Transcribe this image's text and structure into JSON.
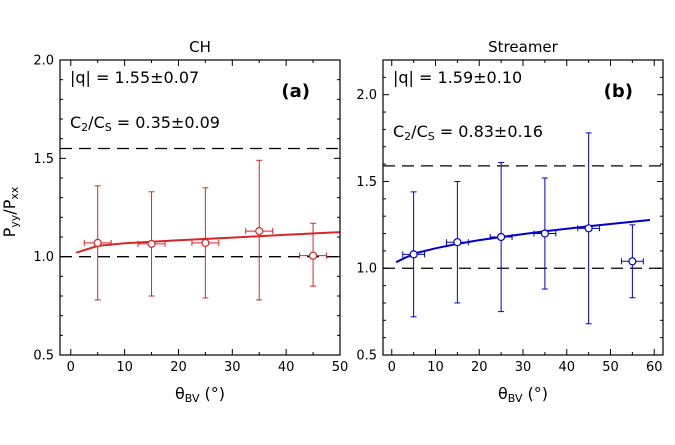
{
  "figure": {
    "ylabel_main": "P",
    "ylabel_sub1": "yy",
    "ylabel_slash": "/P",
    "ylabel_sub2": "xx",
    "xlabel_main": "θ",
    "xlabel_sub": "BV",
    "xlabel_unit": " (°)"
  },
  "chart_data": [
    {
      "type": "scatter",
      "title": "CH",
      "panel_tag": "(a)",
      "annotations": {
        "q_text": "|q| = 1.55±0.07",
        "ratio_main": "C",
        "ratio_sub1": "2",
        "ratio_mid": "/C",
        "ratio_sub2": "S",
        "ratio_value": " = 0.35±0.09"
      },
      "color": "#d62728",
      "xlim": [
        -2,
        50
      ],
      "ylim": [
        0.5,
        2.0
      ],
      "xticks": [
        0,
        10,
        20,
        30,
        40,
        50
      ],
      "yticks": [
        0.5,
        1.0,
        1.5,
        2.0
      ],
      "ytick_labels": [
        "0.5",
        "1.0",
        "1.5",
        "2.0"
      ],
      "hlines": [
        1.0,
        1.55
      ],
      "points": [
        {
          "x": 5,
          "y": 1.07,
          "xerr": 2.5,
          "ylow": 0.78,
          "yhigh": 1.36
        },
        {
          "x": 15,
          "y": 1.065,
          "xerr": 2.5,
          "ylow": 0.8,
          "yhigh": 1.33
        },
        {
          "x": 25,
          "y": 1.07,
          "xerr": 2.5,
          "ylow": 0.79,
          "yhigh": 1.35
        },
        {
          "x": 35,
          "y": 1.13,
          "xerr": 2.5,
          "ylow": 0.78,
          "yhigh": 1.49
        },
        {
          "x": 45,
          "y": 1.005,
          "xerr": 2.5,
          "ylow": 0.85,
          "yhigh": 1.17
        }
      ],
      "fit": {
        "x": [
          1,
          5,
          10,
          20,
          30,
          40,
          50
        ],
        "y": [
          1.02,
          1.055,
          1.068,
          1.083,
          1.097,
          1.111,
          1.125
        ]
      }
    },
    {
      "type": "scatter",
      "title": "Streamer",
      "panel_tag": "(b)",
      "annotations": {
        "q_text": "|q| = 1.59±0.10",
        "ratio_main": "C",
        "ratio_sub1": "2",
        "ratio_mid": "/C",
        "ratio_sub2": "S",
        "ratio_value": " = 0.83±0.16"
      },
      "color": "#0000cc",
      "xlim": [
        -2,
        62
      ],
      "ylim": [
        0.5,
        2.2
      ],
      "xticks": [
        0,
        10,
        20,
        30,
        40,
        50,
        60
      ],
      "yticks": [
        0.5,
        1.0,
        1.5,
        2.0
      ],
      "ytick_labels": [
        "0.5",
        "1.0",
        "1.5",
        "2.0"
      ],
      "hlines": [
        1.0,
        1.59
      ],
      "points": [
        {
          "x": 5,
          "y": 1.08,
          "xerr": 2.5,
          "ylow": 0.72,
          "yhigh": 1.44
        },
        {
          "x": 15,
          "y": 1.15,
          "xerr": 2.5,
          "ylow": 0.8,
          "yhigh": 1.5
        },
        {
          "x": 25,
          "y": 1.18,
          "xerr": 2.5,
          "ylow": 0.75,
          "yhigh": 1.61
        },
        {
          "x": 35,
          "y": 1.2,
          "xerr": 2.5,
          "ylow": 0.88,
          "yhigh": 1.52
        },
        {
          "x": 45,
          "y": 1.23,
          "xerr": 2.5,
          "ylow": 0.68,
          "yhigh": 1.78
        },
        {
          "x": 55,
          "y": 1.04,
          "xerr": 2.5,
          "ylow": 0.83,
          "yhigh": 1.25
        }
      ],
      "fit": {
        "x": [
          1,
          3,
          6,
          10,
          15,
          20,
          25,
          30,
          35,
          40,
          45,
          50,
          55,
          59
        ],
        "y": [
          1.035,
          1.06,
          1.09,
          1.115,
          1.14,
          1.162,
          1.18,
          1.197,
          1.213,
          1.228,
          1.242,
          1.255,
          1.268,
          1.278
        ]
      }
    }
  ]
}
